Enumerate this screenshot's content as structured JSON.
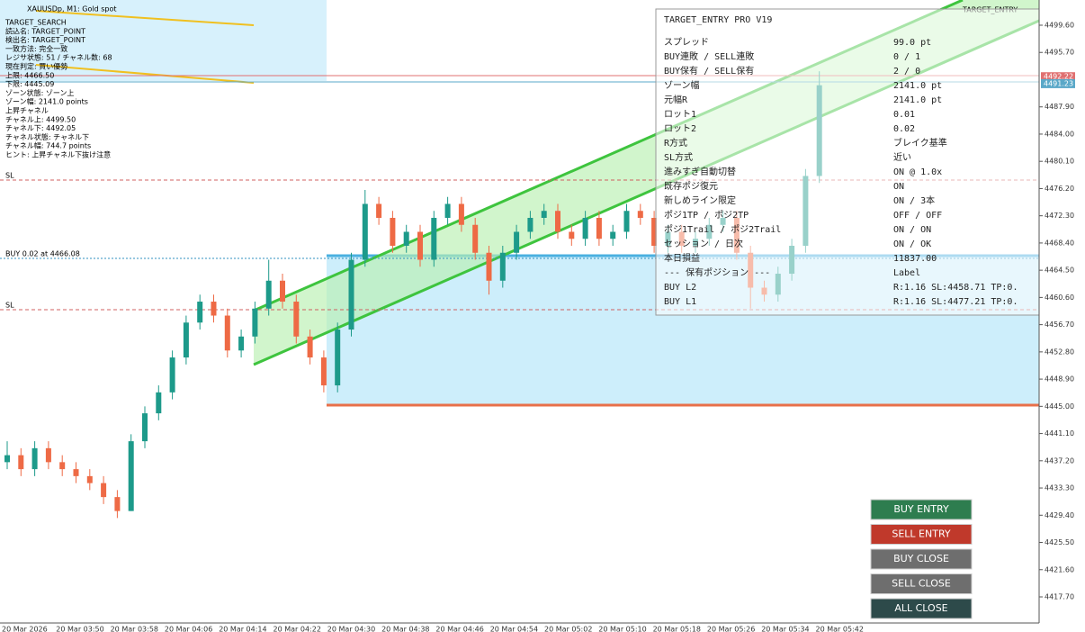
{
  "header": {
    "symbol": "XAUUSDp, M1: Gold spot",
    "indicator": "TARGET_ENTRY"
  },
  "info_lines": [
    "TARGET_SEARCH",
    "読込名: TARGET_POINT",
    "検出名: TARGET_POINT",
    "一致方法: 完全一致",
    "レジサ状態: 51 / チャネル数: 68",
    "現在判定: 買い優勢",
    "上限: 4466.50",
    "下限: 4445.09",
    "ゾーン状態: ゾーン上",
    "ゾーン幅: 2141.0 points",
    "上昇チャネル",
    "チャネル上: 4499.50",
    "チャネル下: 4492.05",
    "チャネル状態: チャネル下",
    "チャネル幅: 744.7 points",
    "ヒント: 上昇チャネル下抜け注意"
  ],
  "line_labels": {
    "sl_upper": "SL",
    "buy": "BUY 0.02 at 4466.08",
    "sl_lower": "SL"
  },
  "price_axis": {
    "ylim": [
      4417.7,
      4499.6
    ],
    "ticks": [
      {
        "value": 4499.6,
        "label": "4499.60"
      },
      {
        "value": 4495.7,
        "label": "4495.70"
      },
      {
        "value": 4487.9,
        "label": "4487.90"
      },
      {
        "value": 4484,
        "label": "4484.00"
      },
      {
        "value": 4480.1,
        "label": "4480.10"
      },
      {
        "value": 4476.2,
        "label": "4476.20"
      },
      {
        "value": 4472.3,
        "label": "4472.30"
      },
      {
        "value": 4468.4,
        "label": "4468.40"
      },
      {
        "value": 4464.5,
        "label": "4464.50"
      },
      {
        "value": 4460.6,
        "label": "4460.60"
      },
      {
        "value": 4456.7,
        "label": "4456.70"
      },
      {
        "value": 4452.8,
        "label": "4452.80"
      },
      {
        "value": 4448.9,
        "label": "4448.90"
      },
      {
        "value": 4445,
        "label": "4445.00"
      },
      {
        "value": 4441.1,
        "label": "4441.10"
      },
      {
        "value": 4437.2,
        "label": "4437.20"
      },
      {
        "value": 4433.3,
        "label": "4433.30"
      },
      {
        "value": 4429.4,
        "label": "4429.40"
      },
      {
        "value": 4425.5,
        "label": "4425.50"
      },
      {
        "value": 4421.6,
        "label": "4421.60"
      },
      {
        "value": 4417.7,
        "label": "4417.70"
      }
    ],
    "ask": {
      "value": 4492.22,
      "label": "4492.22"
    },
    "bid": {
      "value": 4491.23,
      "label": "4491.23"
    }
  },
  "time_labels": [
    "20 Mar 2026",
    "20 Mar 03:50",
    "20 Mar 03:58",
    "20 Mar 04:06",
    "20 Mar 04:14",
    "20 Mar 04:22",
    "20 Mar 04:30",
    "20 Mar 04:38",
    "20 Mar 04:46",
    "20 Mar 04:54",
    "20 Mar 05:02",
    "20 Mar 05:10",
    "20 Mar 05:18",
    "20 Mar 05:26",
    "20 Mar 05:34",
    "20 Mar 05:42"
  ],
  "candles": [
    [
      4437,
      4440,
      4436,
      4438
    ],
    [
      4438,
      4439,
      4435,
      4436
    ],
    [
      4436,
      4440,
      4435,
      4439
    ],
    [
      4439,
      4440,
      4436,
      4437
    ],
    [
      4437,
      4438,
      4435,
      4436
    ],
    [
      4436,
      4437,
      4434,
      4435
    ],
    [
      4435,
      4436,
      4433,
      4434
    ],
    [
      4434,
      4435,
      4431,
      4432
    ],
    [
      4432,
      4433,
      4429,
      4430
    ],
    [
      4430,
      4441,
      4430,
      4440
    ],
    [
      4440,
      4445,
      4439,
      4444
    ],
    [
      4444,
      4448,
      4443,
      4447
    ],
    [
      4447,
      4453,
      4446,
      4452
    ],
    [
      4452,
      4458,
      4451,
      4457
    ],
    [
      4457,
      4461,
      4456,
      4460
    ],
    [
      4460,
      4461,
      4457,
      4458
    ],
    [
      4458,
      4459,
      4452,
      4453
    ],
    [
      4453,
      4456,
      4452,
      4455
    ],
    [
      4455,
      4460,
      4454,
      4459
    ],
    [
      4459,
      4466,
      4458,
      4463
    ],
    [
      4463,
      4464,
      4459,
      4460
    ],
    [
      4460,
      4461,
      4454,
      4455
    ],
    [
      4455,
      4456,
      4451,
      4452
    ],
    [
      4452,
      4453,
      4447,
      4448
    ],
    [
      4448,
      4457,
      4447,
      4456
    ],
    [
      4456,
      4467,
      4455,
      4466
    ],
    [
      4466,
      4476,
      4465,
      4474
    ],
    [
      4474,
      4475,
      4471,
      4472
    ],
    [
      4472,
      4473,
      4467,
      4468
    ],
    [
      4468,
      4471,
      4467,
      4470
    ],
    [
      4470,
      4471,
      4465,
      4466
    ],
    [
      4466,
      4473,
      4465,
      4472
    ],
    [
      4472,
      4475,
      4471,
      4474
    ],
    [
      4474,
      4475,
      4470,
      4471
    ],
    [
      4471,
      4472,
      4466,
      4467
    ],
    [
      4467,
      4468,
      4461,
      4463
    ],
    [
      4463,
      4468,
      4462,
      4467
    ],
    [
      4467,
      4471,
      4466,
      4470
    ],
    [
      4470,
      4473,
      4469,
      4472
    ],
    [
      4472,
      4474,
      4471,
      4473
    ],
    [
      4473,
      4474,
      4469,
      4470
    ],
    [
      4470,
      4471,
      4468,
      4469
    ],
    [
      4469,
      4473,
      4468,
      4472
    ],
    [
      4472,
      4473,
      4468,
      4469
    ],
    [
      4469,
      4471,
      4468,
      4470
    ],
    [
      4470,
      4474,
      4469,
      4473
    ],
    [
      4473,
      4474,
      4471,
      4472
    ],
    [
      4472,
      4473,
      4467,
      4468
    ],
    [
      4468,
      4471,
      4467,
      4470
    ],
    [
      4470,
      4471,
      4467,
      4468
    ],
    [
      4468,
      4470,
      4467,
      4469
    ],
    [
      4469,
      4472,
      4468,
      4471
    ],
    [
      4471,
      4473,
      4470,
      4472
    ],
    [
      4472,
      4473,
      4466,
      4467
    ],
    [
      4467,
      4468,
      4459,
      4462
    ],
    [
      4462,
      4463,
      4460,
      4461
    ],
    [
      4461,
      4465,
      4460,
      4464
    ],
    [
      4464,
      4469,
      4463,
      4468
    ],
    [
      4468,
      4479,
      4467,
      4478
    ],
    [
      4478,
      4493,
      4477,
      4491
    ]
  ],
  "panel": {
    "title": "TARGET_ENTRY PRO V19",
    "rows": [
      [
        "スプレッド",
        "99.0 pt"
      ],
      [
        "BUY連敗 / SELL連敗",
        "0 / 1"
      ],
      [
        "BUY保有 / SELL保有",
        "2 / 0"
      ],
      [
        "ゾーン幅",
        "2141.0 pt"
      ],
      [
        "元幅R",
        "2141.0 pt"
      ],
      [
        "ロット1",
        "0.01"
      ],
      [
        "ロット2",
        "0.02"
      ],
      [
        "R方式",
        "ブレイク基準"
      ],
      [
        "SL方式",
        "近い"
      ],
      [
        "進みすぎ自動切替",
        "ON @ 1.0x"
      ],
      [
        "既存ポジ復元",
        "ON"
      ],
      [
        "新しめライン限定",
        "ON / 3本"
      ],
      [
        "ポジ1TP / ポジ2TP",
        "OFF / OFF"
      ],
      [
        "ポジ1Trail / ポジ2Trail",
        "ON / ON"
      ],
      [
        "セッション / 日次",
        "ON / OK"
      ],
      [
        "本日損益",
        "11837.00"
      ],
      [
        "--- 保有ポジション ---",
        "Label"
      ],
      [
        "BUY L2",
        "R:1.16  SL:4458.71  TP:0."
      ],
      [
        "BUY L1",
        "R:1.16  SL:4477.21  TP:0."
      ]
    ]
  },
  "buttons": [
    "BUY ENTRY",
    "SELL ENTRY",
    "BUY CLOSE",
    "SELL CLOSE",
    "ALL CLOSE"
  ]
}
